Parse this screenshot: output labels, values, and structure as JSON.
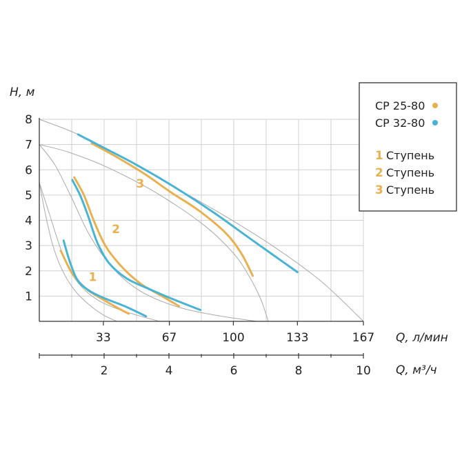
{
  "chart_data": {
    "type": "line",
    "ylabel": "H, м",
    "xlabel": "Q, л/мин",
    "xlabel2": "Q, м³/ч",
    "xlim": [
      0,
      167
    ],
    "ylim": [
      0,
      8
    ],
    "yticks": [
      "1",
      "2",
      "3",
      "4",
      "5",
      "6",
      "7",
      "8"
    ],
    "xticks": [
      {
        "value": 33,
        "label": "33"
      },
      {
        "value": 67,
        "label": "67"
      },
      {
        "value": 100,
        "label": "100"
      },
      {
        "value": 133,
        "label": "133"
      },
      {
        "value": 167,
        "label": "167"
      }
    ],
    "x2ticks": [
      {
        "value": 2,
        "label": "2"
      },
      {
        "value": 4,
        "label": "4"
      },
      {
        "value": 6,
        "label": "6"
      },
      {
        "value": 8,
        "label": "8"
      },
      {
        "value": 10,
        "label": "10"
      }
    ],
    "x2lim": [
      0,
      10
    ],
    "grid": true,
    "legend": {
      "position": "right",
      "models": [
        {
          "name": "CP 25-80",
          "color": "#e8b04f"
        },
        {
          "name": "CP 32-80",
          "color": "#49b3d6"
        }
      ],
      "stages": [
        {
          "num": "1",
          "label": "Ступень"
        },
        {
          "num": "2",
          "label": "Ступень"
        },
        {
          "num": "3",
          "label": "Ступень"
        }
      ]
    },
    "stage_labels": [
      {
        "text": "1",
        "x": 27.5,
        "y": 1.6
      },
      {
        "text": "2",
        "x": 39.5,
        "y": 3.5
      },
      {
        "text": "3",
        "x": 52,
        "y": 5.3
      }
    ],
    "series": [
      {
        "color": "#e8b04f",
        "stage": 1,
        "x": [
          11,
          17,
          24,
          32,
          40,
          46
        ],
        "y": [
          2.8,
          1.9,
          1.3,
          0.9,
          0.55,
          0.3
        ]
      },
      {
        "color": "#49b3d6",
        "stage": 1,
        "x": [
          12.5,
          16,
          20,
          26,
          34,
          44,
          55
        ],
        "y": [
          3.2,
          2.3,
          1.6,
          1.2,
          0.9,
          0.6,
          0.2
        ]
      },
      {
        "color": "#e8b04f",
        "stage": 2,
        "x": [
          18,
          23,
          28,
          34,
          42,
          52,
          62,
          72
        ],
        "y": [
          5.7,
          5.0,
          4.0,
          3.0,
          2.2,
          1.5,
          1.05,
          0.6
        ]
      },
      {
        "color": "#49b3d6",
        "stage": 2,
        "x": [
          17,
          21,
          25,
          30,
          36,
          45,
          56,
          65,
          73,
          83
        ],
        "y": [
          5.6,
          5.0,
          4.2,
          3.1,
          2.3,
          1.7,
          1.3,
          1.0,
          0.75,
          0.45
        ]
      },
      {
        "color": "#e8b04f",
        "stage": 3,
        "x": [
          27,
          40,
          55,
          68,
          82,
          96,
          104,
          110
        ],
        "y": [
          7.05,
          6.5,
          5.8,
          5.1,
          4.4,
          3.5,
          2.7,
          1.8
        ]
      },
      {
        "color": "#49b3d6",
        "stage": 3,
        "x": [
          20,
          30,
          50,
          70,
          90,
          110,
          133
        ],
        "y": [
          7.4,
          7.0,
          6.2,
          5.3,
          4.3,
          3.2,
          1.95
        ]
      }
    ],
    "guide_curves": [
      {
        "x": [
          0,
          20,
          45,
          70,
          95,
          120,
          145,
          167
        ],
        "y": [
          8,
          7.4,
          6.4,
          5.3,
          4.2,
          3.0,
          1.6,
          0
        ]
      },
      {
        "x": [
          0,
          15,
          35,
          60,
          85,
          100,
          108,
          114,
          118
        ],
        "y": [
          7.0,
          6.7,
          6.1,
          5.1,
          3.8,
          2.7,
          1.8,
          0.9,
          0
        ]
      },
      {
        "x": [
          0,
          8,
          16,
          26,
          38,
          52,
          70,
          90,
          112
        ],
        "y": [
          7.0,
          6.2,
          5.0,
          3.4,
          2.1,
          1.2,
          0.6,
          0.25,
          0
        ]
      },
      {
        "x": [
          0,
          5,
          10,
          15,
          22,
          30,
          40,
          50,
          62
        ],
        "y": [
          5.5,
          4.3,
          3.1,
          2.1,
          1.35,
          0.85,
          0.5,
          0.25,
          0
        ]
      },
      {
        "x": [
          0,
          3,
          7,
          12,
          18,
          25,
          33,
          40
        ],
        "y": [
          5.5,
          4.3,
          3.0,
          2.0,
          1.25,
          0.7,
          0.25,
          0
        ]
      }
    ]
  }
}
